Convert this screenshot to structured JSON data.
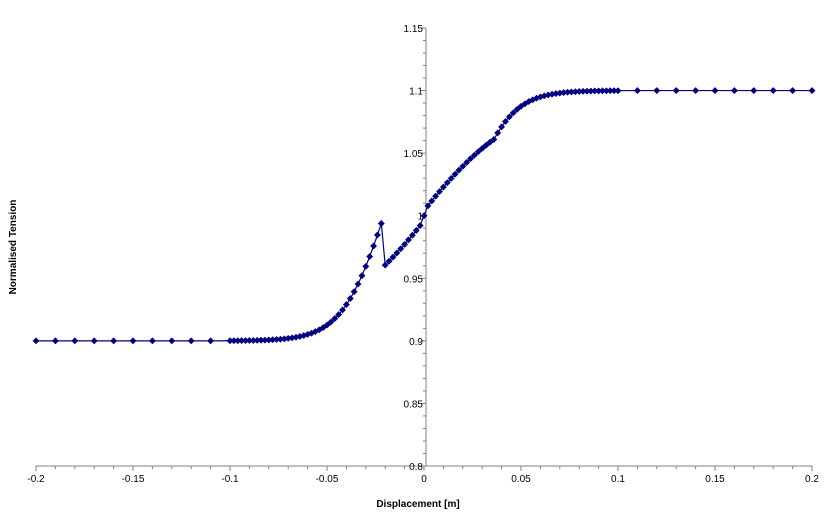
{
  "chart_data": {
    "type": "line",
    "title": "",
    "xlabel": "Displacement [m]",
    "ylabel": "Normalised Tension",
    "xlim": [
      -0.2,
      0.2
    ],
    "ylim": [
      0.8,
      1.15
    ],
    "grid": false,
    "legend": "none",
    "x_ticks": [
      -0.2,
      -0.15,
      -0.1,
      -0.05,
      0,
      0.05,
      0.1,
      0.15,
      0.2
    ],
    "x_tick_labels": [
      "-0.2",
      "-0.15",
      "-0.1",
      "-0.05",
      "0",
      "0.05",
      "0.1",
      "0.15",
      "0.2"
    ],
    "y_ticks": [
      0.8,
      0.85,
      0.9,
      0.95,
      1,
      1.05,
      1.1,
      1.15
    ],
    "y_tick_labels": [
      "0.8",
      "0.85",
      "0.9",
      "0.95",
      "1",
      "1.05",
      "1.1",
      "1.15"
    ],
    "series_color": "#000080",
    "series": [
      {
        "name": "",
        "points": [
          [
            -0.2,
            0.9
          ],
          [
            -0.19,
            0.9
          ],
          [
            -0.18,
            0.9
          ],
          [
            -0.17,
            0.9
          ],
          [
            -0.16,
            0.9
          ],
          [
            -0.15,
            0.9
          ],
          [
            -0.14,
            0.9
          ],
          [
            -0.13,
            0.9
          ],
          [
            -0.12,
            0.9
          ],
          [
            -0.11,
            0.9
          ],
          [
            -0.1,
            0.9001
          ],
          [
            -0.098,
            0.9001
          ],
          [
            -0.096,
            0.9001
          ],
          [
            -0.094,
            0.9002
          ],
          [
            -0.092,
            0.9002
          ],
          [
            -0.09,
            0.9003
          ],
          [
            -0.088,
            0.9003
          ],
          [
            -0.086,
            0.9004
          ],
          [
            -0.084,
            0.9005
          ],
          [
            -0.082,
            0.9006
          ],
          [
            -0.08,
            0.9007
          ],
          [
            -0.078,
            0.9009
          ],
          [
            -0.076,
            0.9011
          ],
          [
            -0.074,
            0.9013
          ],
          [
            -0.072,
            0.9016
          ],
          [
            -0.07,
            0.902
          ],
          [
            -0.068,
            0.9024
          ],
          [
            -0.066,
            0.9029
          ],
          [
            -0.064,
            0.9035
          ],
          [
            -0.062,
            0.9042
          ],
          [
            -0.06,
            0.9051
          ],
          [
            -0.058,
            0.9061
          ],
          [
            -0.056,
            0.9074
          ],
          [
            -0.054,
            0.9088
          ],
          [
            -0.052,
            0.9106
          ],
          [
            -0.05,
            0.9126
          ],
          [
            -0.048,
            0.915
          ],
          [
            -0.046,
            0.9178
          ],
          [
            -0.044,
            0.921
          ],
          [
            -0.042,
            0.9247
          ],
          [
            -0.04,
            0.929
          ],
          [
            -0.038,
            0.9338
          ],
          [
            -0.036,
            0.9393
          ],
          [
            -0.034,
            0.9454
          ],
          [
            -0.032,
            0.9521
          ],
          [
            -0.03,
            0.9595
          ],
          [
            -0.028,
            0.9674
          ],
          [
            -0.026,
            0.9758
          ],
          [
            -0.024,
            0.9846
          ],
          [
            -0.022,
            0.9938
          ],
          [
            -0.02,
            0.9605
          ],
          [
            -0.018,
            0.9636
          ],
          [
            -0.016,
            0.9669
          ],
          [
            -0.014,
            0.9702
          ],
          [
            -0.012,
            0.9736
          ],
          [
            -0.01,
            0.9771
          ],
          [
            -0.008,
            0.9807
          ],
          [
            -0.006,
            0.9844
          ],
          [
            -0.004,
            0.9882
          ],
          [
            -0.002,
            0.9921
          ],
          [
            0,
            1.0
          ],
          [
            0.002,
            1.0079
          ],
          [
            0.004,
            1.0118
          ],
          [
            0.006,
            1.0156
          ],
          [
            0.008,
            1.0193
          ],
          [
            0.01,
            1.0229
          ],
          [
            0.012,
            1.0264
          ],
          [
            0.014,
            1.0298
          ],
          [
            0.016,
            1.0331
          ],
          [
            0.018,
            1.0364
          ],
          [
            0.02,
            1.0395
          ],
          [
            0.022,
            1.0426
          ],
          [
            0.024,
            1.0456
          ],
          [
            0.026,
            1.0484
          ],
          [
            0.028,
            1.0512
          ],
          [
            0.03,
            1.0538
          ],
          [
            0.032,
            1.0563
          ],
          [
            0.034,
            1.0587
          ],
          [
            0.036,
            1.0609
          ],
          [
            0.038,
            1.0662
          ],
          [
            0.04,
            1.071
          ],
          [
            0.042,
            1.0753
          ],
          [
            0.044,
            1.079
          ],
          [
            0.046,
            1.0822
          ],
          [
            0.048,
            1.085
          ],
          [
            0.05,
            1.0874
          ],
          [
            0.052,
            1.0894
          ],
          [
            0.054,
            1.0912
          ],
          [
            0.056,
            1.0926
          ],
          [
            0.058,
            1.0939
          ],
          [
            0.06,
            1.0949
          ],
          [
            0.062,
            1.0958
          ],
          [
            0.064,
            1.0965
          ],
          [
            0.066,
            1.0971
          ],
          [
            0.068,
            1.0976
          ],
          [
            0.07,
            1.098
          ],
          [
            0.072,
            1.0984
          ],
          [
            0.074,
            1.0987
          ],
          [
            0.076,
            1.0989
          ],
          [
            0.078,
            1.0991
          ],
          [
            0.08,
            1.0993
          ],
          [
            0.082,
            1.0994
          ],
          [
            0.084,
            1.0995
          ],
          [
            0.086,
            1.0996
          ],
          [
            0.088,
            1.0997
          ],
          [
            0.09,
            1.0997
          ],
          [
            0.092,
            1.0998
          ],
          [
            0.094,
            1.0998
          ],
          [
            0.096,
            1.0999
          ],
          [
            0.098,
            1.0999
          ],
          [
            0.1,
            1.0999
          ],
          [
            0.11,
            1.1
          ],
          [
            0.12,
            1.1
          ],
          [
            0.13,
            1.1
          ],
          [
            0.14,
            1.1
          ],
          [
            0.15,
            1.1
          ],
          [
            0.16,
            1.1
          ],
          [
            0.17,
            1.1
          ],
          [
            0.18,
            1.1
          ],
          [
            0.19,
            1.1
          ],
          [
            0.2,
            1.1
          ]
        ]
      }
    ]
  }
}
